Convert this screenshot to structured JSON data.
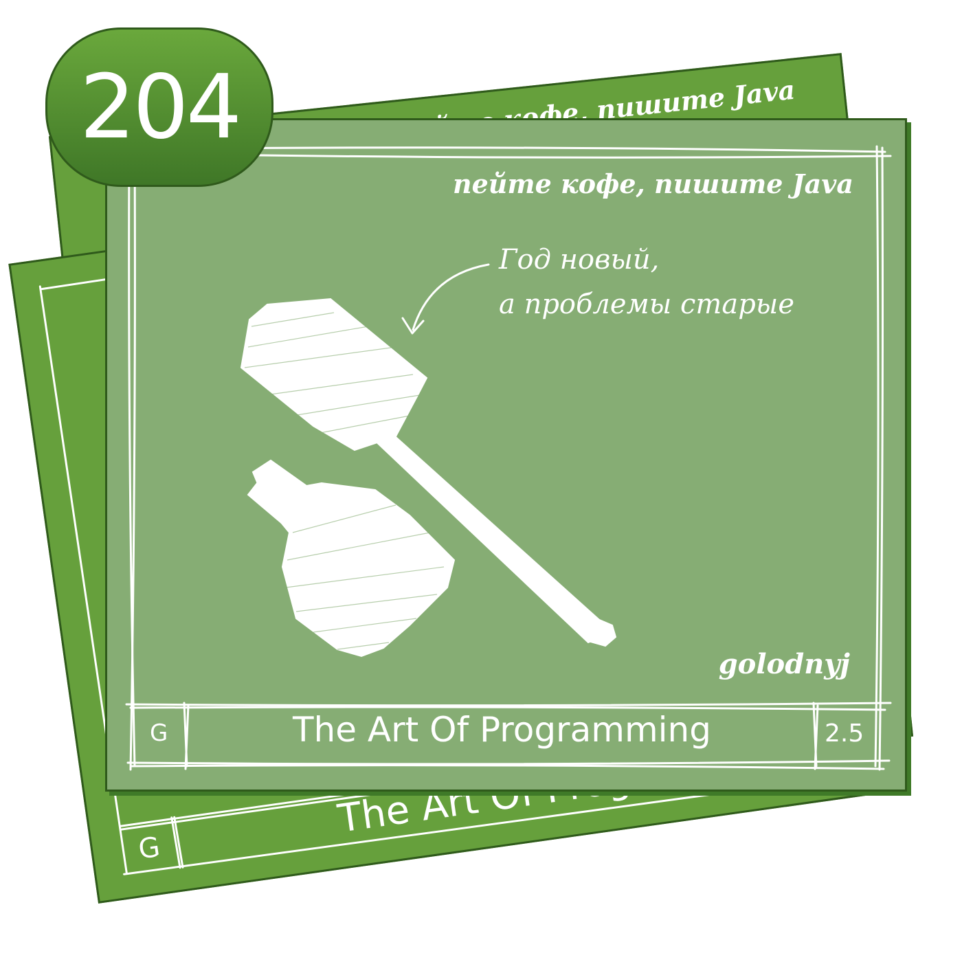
{
  "badge": {
    "number": "204"
  },
  "cards": {
    "back": {
      "tagline": "пейте кофе, пишите Java"
    },
    "middle": {
      "title": "The Art Of Programming",
      "corner_letter": "G"
    },
    "front": {
      "tagline": "пейте кофе, пишите Java",
      "caption_line1": "Год новый,",
      "caption_line2": "а проблемы старые",
      "author": "golodnyj",
      "title": "The Art Of Programming",
      "corner_letter": "G",
      "version": "2.5"
    }
  },
  "colors": {
    "card_green": "#66a03c",
    "front_card_green": "#86ad74",
    "border_dark_green": "#2f5a1b",
    "chalk": "#ffffff"
  }
}
